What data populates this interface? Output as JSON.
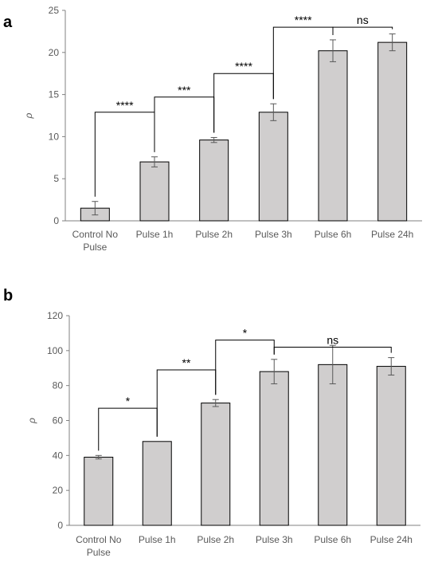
{
  "chart_data": [
    {
      "panel": "a",
      "type": "bar",
      "ylabel": "ρ",
      "ylim": [
        0,
        25
      ],
      "yticks": [
        "0",
        "5",
        "10",
        "15",
        "20",
        "25"
      ],
      "categories": [
        [
          "Control No",
          "Pulse"
        ],
        [
          "Pulse 1h"
        ],
        [
          "Pulse 2h"
        ],
        [
          "Pulse 3h"
        ],
        [
          "Pulse 6h"
        ],
        [
          "Pulse 24h"
        ]
      ],
      "values": [
        1.5,
        7.0,
        9.6,
        12.9,
        20.2,
        21.2
      ],
      "errors": [
        0.8,
        0.6,
        0.3,
        1.0,
        1.3,
        1.0
      ],
      "comparisons": [
        {
          "from": 0,
          "to": 1,
          "label": "****",
          "level": 12.9
        },
        {
          "from": 1,
          "to": 2,
          "label": "***",
          "level": 14.7
        },
        {
          "from": 2,
          "to": 3,
          "label": "****",
          "level": 17.5
        },
        {
          "from": 3,
          "to": 4,
          "label": "****",
          "level": 23.0
        },
        {
          "from": 4,
          "to": 5,
          "label": "ns",
          "level": 23.0
        }
      ],
      "grid": false,
      "bar_color": "#d0cece"
    },
    {
      "panel": "b",
      "type": "bar",
      "ylabel": "ρ",
      "ylim": [
        0,
        120
      ],
      "yticks": [
        "0",
        "20",
        "40",
        "60",
        "80",
        "100",
        "120"
      ],
      "categories": [
        [
          "Control No",
          "Pulse"
        ],
        [
          "Pulse 1h"
        ],
        [
          "Pulse 2h"
        ],
        [
          "Pulse 3h"
        ],
        [
          "Pulse 6h"
        ],
        [
          "Pulse 24h"
        ]
      ],
      "values": [
        39,
        48,
        70,
        88,
        92,
        91
      ],
      "errors": [
        1,
        0,
        2,
        7,
        11,
        5
      ],
      "comparisons": [
        {
          "from": 0,
          "to": 1,
          "label": "*",
          "level": 67
        },
        {
          "from": 1,
          "to": 2,
          "label": "**",
          "level": 89
        },
        {
          "from": 2,
          "to": 3,
          "label": "*",
          "level": 106
        },
        {
          "from": 3,
          "to": 5,
          "label": "ns",
          "level": 102
        }
      ],
      "grid": false,
      "bar_color": "#d0cece"
    }
  ],
  "panel_labels": [
    "a",
    "b"
  ]
}
